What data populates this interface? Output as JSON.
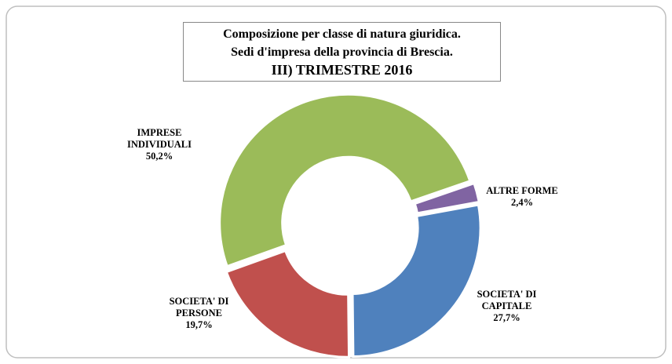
{
  "chart_data": {
    "type": "donut",
    "title": [
      "Composizione per classe di natura giuridica.",
      "Sedi d'impresa della provincia di Brescia.",
      "III) TRIMESTRE 2016"
    ],
    "categories": [
      "ALTRE FORME",
      "SOCIETA' DI CAPITALE",
      "SOCIETA' DI PERSONE",
      "IMPRESE INDIVIDUALI"
    ],
    "values": [
      2.4,
      27.7,
      19.7,
      50.2
    ],
    "value_labels": [
      "2,4%",
      "27,7%",
      "19,7%",
      "50,2%"
    ],
    "colors": [
      "#8064a2",
      "#4f81bd",
      "#c0504d",
      "#9bbb59"
    ]
  }
}
